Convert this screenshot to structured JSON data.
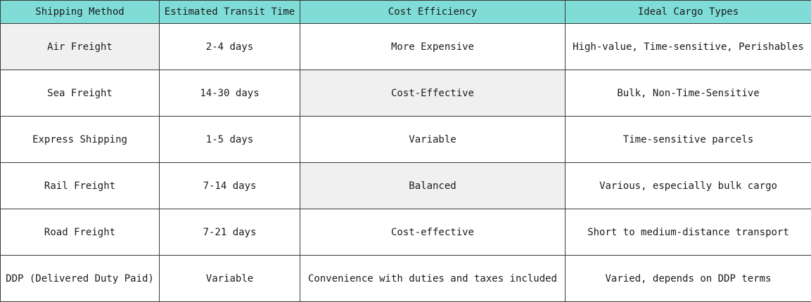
{
  "table": {
    "headers": [
      "Shipping Method",
      "Estimated Transit Time",
      "Cost Efficiency",
      "Ideal Cargo Types"
    ],
    "rows": [
      [
        "Air Freight",
        "2-4 days",
        "More Expensive",
        "High-value, Time-sensitive, Perishables"
      ],
      [
        "Sea Freight",
        "14-30 days",
        "Cost-Effective",
        "Bulk, Non-Time-Sensitive"
      ],
      [
        "Express Shipping",
        "1-5 days",
        "Variable",
        "Time-sensitive parcels"
      ],
      [
        "Rail Freight",
        "7-14 days",
        "Balanced",
        "Various, especially bulk cargo"
      ],
      [
        "Road Freight",
        "7-21 days",
        "Cost-effective",
        "Short to medium-distance transport"
      ],
      [
        "DDP (Delivered Duty Paid)",
        "Variable",
        "Convenience with duties and taxes included",
        "Varied, depends on DDP terms"
      ]
    ]
  },
  "colors": {
    "header_bg": "#7fdcd6",
    "shaded_cell_bg": "#f0f0f0",
    "border": "#3a3a3a"
  }
}
